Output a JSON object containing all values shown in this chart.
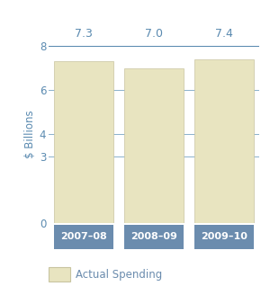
{
  "categories": [
    "2007–08",
    "2008–09",
    "2009–10"
  ],
  "values": [
    7.3,
    7.0,
    7.4
  ],
  "bar_color": "#e8e4c0",
  "bar_edge_color": "#c8c4a0",
  "xlabel_bg_color": "#6b8cae",
  "xlabel_text_color": "#ffffff",
  "ylabel": "$ Billions",
  "ylabel_color": "#5a8ab0",
  "tick_color": "#5a8ab0",
  "grid_color": "#8ab0cc",
  "ylim": [
    0,
    8
  ],
  "yticks": [
    0,
    3,
    4,
    6,
    8
  ],
  "value_label_color": "#5a8ab0",
  "ref_line_color": "#5a8ab0",
  "legend_label": "Actual Spending",
  "background_color": "#ffffff"
}
